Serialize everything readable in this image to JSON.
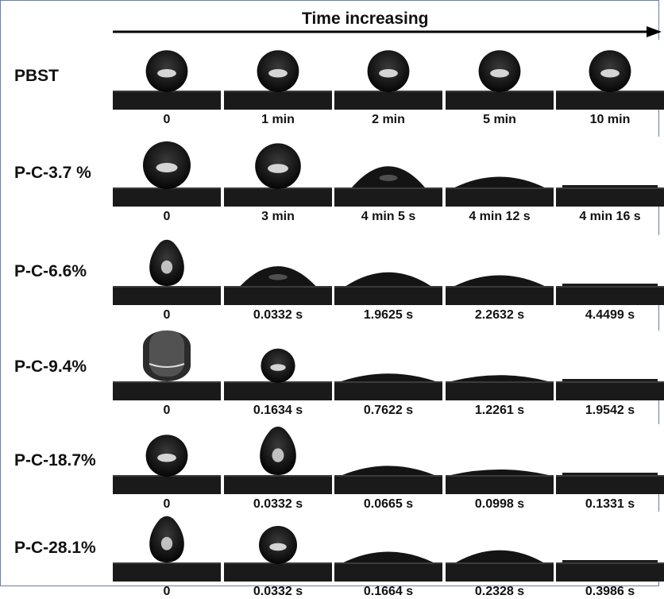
{
  "header": {
    "title": "Time increasing"
  },
  "rows": [
    {
      "label": "PBST",
      "frames": [
        {
          "time": "0",
          "shape": "sphere",
          "size": 0.85
        },
        {
          "time": "1 min",
          "shape": "sphere",
          "size": 0.85
        },
        {
          "time": "2 min",
          "shape": "sphere",
          "size": 0.85
        },
        {
          "time": "5 min",
          "shape": "sphere",
          "size": 0.85
        },
        {
          "time": "10 min",
          "shape": "sphere",
          "size": 0.85
        }
      ]
    },
    {
      "label": "P-C-3.7 %",
      "frames": [
        {
          "time": "0",
          "shape": "sphere",
          "size": 1.0
        },
        {
          "time": "3 min",
          "shape": "sphere",
          "size": 0.95
        },
        {
          "time": "4 min 5 s",
          "shape": "cap",
          "size": 0.6
        },
        {
          "time": "4 min 12 s",
          "shape": "cap",
          "size": 0.25
        },
        {
          "time": "4 min 16 s",
          "shape": "film",
          "size": 0.05
        }
      ]
    },
    {
      "label": "P-C-6.6%",
      "frames": [
        {
          "time": "0",
          "shape": "pendant",
          "size": 0.9
        },
        {
          "time": "0.0332 s",
          "shape": "cap",
          "size": 0.55
        },
        {
          "time": "1.9625 s",
          "shape": "cap",
          "size": 0.35
        },
        {
          "time": "2.2632 s",
          "shape": "cap",
          "size": 0.25
        },
        {
          "time": "4.4499 s",
          "shape": "film",
          "size": 0.05
        }
      ]
    },
    {
      "label": "P-C-9.4%",
      "frames": [
        {
          "time": "0",
          "shape": "stretched",
          "size": 1.0
        },
        {
          "time": "0.1634 s",
          "shape": "sphere",
          "size": 0.65
        },
        {
          "time": "0.7622 s",
          "shape": "cap",
          "size": 0.15
        },
        {
          "time": "1.2261 s",
          "shape": "cap",
          "size": 0.1
        },
        {
          "time": "1.9542 s",
          "shape": "film",
          "size": 0.04
        }
      ]
    },
    {
      "label": "P-C-18.7%",
      "frames": [
        {
          "time": "0",
          "shape": "sphere",
          "size": 0.85
        },
        {
          "time": "0.0332 s",
          "shape": "pendant",
          "size": 0.95
        },
        {
          "time": "0.0665 s",
          "shape": "cap",
          "size": 0.2
        },
        {
          "time": "0.0998 s",
          "shape": "cap",
          "size": 0.08
        },
        {
          "time": "0.1331 s",
          "shape": "film",
          "size": 0.04
        }
      ]
    },
    {
      "label": "P-C-28.1%",
      "frames": [
        {
          "time": "0",
          "shape": "pendant",
          "size": 0.9
        },
        {
          "time": "0.0332 s",
          "shape": "sphere",
          "size": 0.75
        },
        {
          "time": "0.1664 s",
          "shape": "cap",
          "size": 0.25
        },
        {
          "time": "0.2328 s",
          "shape": "cap",
          "size": 0.3
        },
        {
          "time": "0.3986 s",
          "shape": "film",
          "size": 0.05
        }
      ]
    }
  ]
}
